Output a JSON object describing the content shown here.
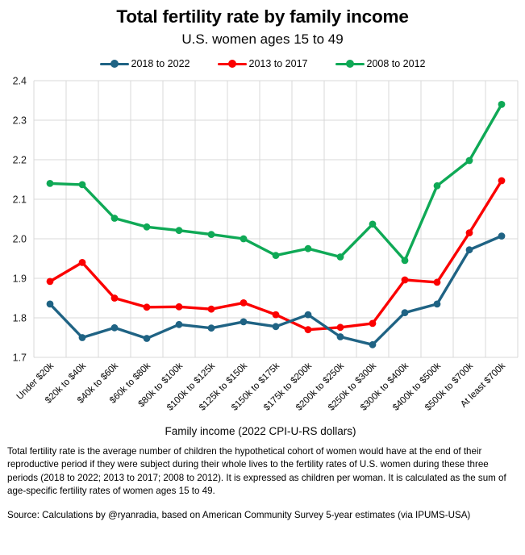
{
  "header": {
    "title": "Total fertility rate by family income",
    "subtitle": "U.S. women ages 15 to 49"
  },
  "chart_data": {
    "type": "line",
    "title": "Total fertility rate by family income",
    "subtitle": "U.S. women ages 15 to 49",
    "categories": [
      "Under $20k",
      "$20k to $40k",
      "$40k to $60k",
      "$60k to $80k",
      "$80k to $100k",
      "$100k to $125k",
      "$125k to $150k",
      "$150k to $175k",
      "$175k to $200k",
      "$200k to $250k",
      "$250k to $300k",
      "$300k to $400k",
      "$400k to $500k",
      "$500k to $700k",
      "At least $700k"
    ],
    "series": [
      {
        "name": "2018 to 2022",
        "color": "#1f6384",
        "values": [
          1.835,
          1.75,
          1.775,
          1.748,
          1.783,
          1.774,
          1.79,
          1.778,
          1.808,
          1.752,
          1.732,
          1.813,
          1.835,
          1.972,
          2.007
        ]
      },
      {
        "name": "2013 to 2017",
        "color": "#fb0000",
        "values": [
          1.892,
          1.94,
          1.85,
          1.827,
          1.828,
          1.822,
          1.838,
          1.808,
          1.77,
          1.776,
          1.786,
          1.896,
          1.89,
          2.015,
          2.147
        ]
      },
      {
        "name": "2008 to 2012",
        "color": "#0fa956",
        "values": [
          2.14,
          2.137,
          2.052,
          2.03,
          2.021,
          2.011,
          2.0,
          1.958,
          1.975,
          1.954,
          2.037,
          1.945,
          2.134,
          2.198,
          2.34
        ]
      }
    ],
    "xlabel": "Family income (2022 CPI-U-RS dollars)",
    "ylabel": "",
    "ylim": [
      1.7,
      2.4
    ],
    "ytick_step": 0.1,
    "ytick_format_decimals": 1,
    "grid": true,
    "grid_color": "#d9d9d9",
    "legend_position": "top"
  },
  "footer": {
    "note": "Total fertility rate is the average number of children the hypothetical cohort of women would have at the end of their reproductive period if they were subject during their whole lives to the fertility rates of U.S. women during these three periods (2018 to 2022; 2013 to 2017; 2008 to 2012). It is expressed as children per woman. It is calculated as the sum of age-specific fertility rates of women ages 15 to 49.",
    "source": "Source: Calculations by @ryanradia, based on American Community Survey 5-year estimates (via IPUMS-USA)"
  }
}
